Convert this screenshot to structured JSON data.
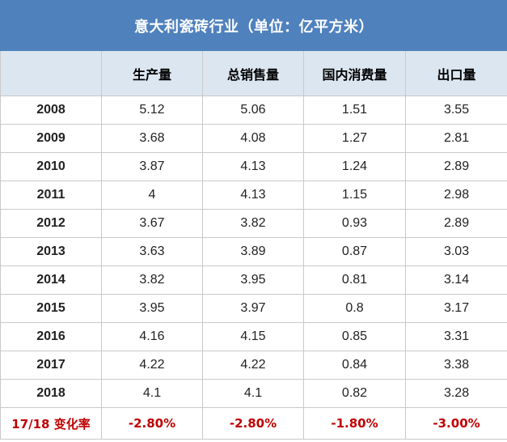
{
  "chart_data": {
    "type": "table",
    "title": "意大利瓷砖行业（单位：亿平方米）",
    "columns": [
      "",
      "生产量",
      "总销售量",
      "国内消费量",
      "出口量"
    ],
    "rows": [
      [
        "2008",
        "5.12",
        "5.06",
        "1.51",
        "3.55"
      ],
      [
        "2009",
        "3.68",
        "4.08",
        "1.27",
        "2.81"
      ],
      [
        "2010",
        "3.87",
        "4.13",
        "1.24",
        "2.89"
      ],
      [
        "2011",
        "4",
        "4.13",
        "1.15",
        "2.98"
      ],
      [
        "2012",
        "3.67",
        "3.82",
        "0.93",
        "2.89"
      ],
      [
        "2013",
        "3.63",
        "3.89",
        "0.87",
        "3.03"
      ],
      [
        "2014",
        "3.82",
        "3.95",
        "0.81",
        "3.14"
      ],
      [
        "2015",
        "3.95",
        "3.97",
        "0.8",
        "3.17"
      ],
      [
        "2016",
        "4.16",
        "4.15",
        "0.85",
        "3.31"
      ],
      [
        "2017",
        "4.22",
        "4.22",
        "0.84",
        "3.38"
      ],
      [
        "2018",
        "4.1",
        "4.1",
        "0.82",
        "3.28"
      ]
    ],
    "change_row": [
      "17/18 变化率",
      "-2.80%",
      "-2.80%",
      "-1.80%",
      "-3.00%"
    ]
  },
  "colors": {
    "title_bg": "#4f81bd",
    "header_bg": "#dce6f1",
    "change_text": "#c00000"
  }
}
